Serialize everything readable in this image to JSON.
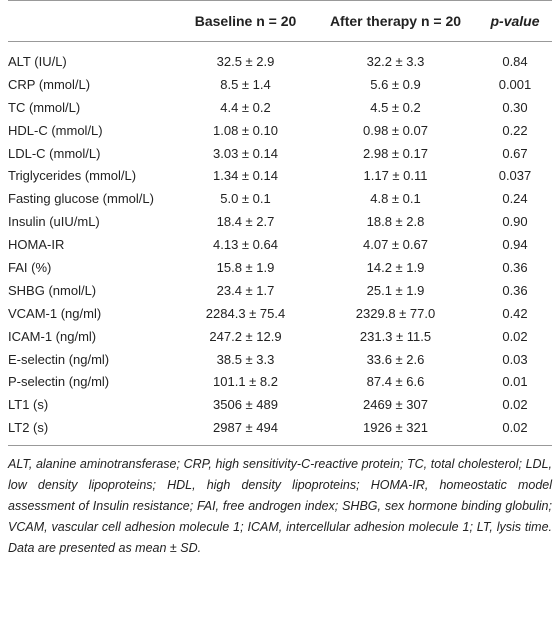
{
  "table": {
    "header": [
      "",
      "Baseline n = 20",
      "After therapy n = 20",
      "p-value"
    ],
    "rows": [
      [
        "ALT (IU/L)",
        "32.5 ± 2.9",
        "32.2 ± 3.3",
        "0.84"
      ],
      [
        "CRP (mmol/L)",
        "8.5 ± 1.4",
        "5.6 ± 0.9",
        "0.001"
      ],
      [
        "TC (mmol/L)",
        "4.4 ± 0.2",
        "4.5 ± 0.2",
        "0.30"
      ],
      [
        "HDL-C (mmol/L)",
        "1.08 ± 0.10",
        "0.98 ± 0.07",
        "0.22"
      ],
      [
        "LDL-C (mmol/L)",
        "3.03 ± 0.14",
        "2.98 ± 0.17",
        "0.67"
      ],
      [
        "Triglycerides (mmol/L)",
        "1.34 ± 0.14",
        "1.17 ± 0.11",
        "0.037"
      ],
      [
        "Fasting glucose (mmol/L)",
        "5.0 ± 0.1",
        "4.8 ± 0.1",
        "0.24"
      ],
      [
        "Insulin (uIU/mL)",
        "18.4 ± 2.7",
        "18.8 ± 2.8",
        "0.90"
      ],
      [
        "HOMA-IR",
        "4.13 ± 0.64",
        "4.07 ± 0.67",
        "0.94"
      ],
      [
        "FAI (%)",
        "15.8 ± 1.9",
        "14.2 ± 1.9",
        "0.36"
      ],
      [
        "SHBG (nmol/L)",
        "23.4 ± 1.7",
        "25.1 ± 1.9",
        "0.36"
      ],
      [
        "VCAM-1 (ng/ml)",
        "2284.3 ± 75.4",
        "2329.8 ± 77.0",
        "0.42"
      ],
      [
        "ICAM-1 (ng/ml)",
        "247.2 ± 12.9",
        "231.3 ± 11.5",
        "0.02"
      ],
      [
        "E-selectin (ng/ml)",
        "38.5 ± 3.3",
        "33.6 ± 2.6",
        "0.03"
      ],
      [
        "P-selectin (ng/ml)",
        "101.1 ± 8.2",
        "87.4 ± 6.6",
        "0.01"
      ],
      [
        "LT1 (s)",
        "3506 ± 489",
        "2469 ± 307",
        "0.02"
      ],
      [
        "LT2 (s)",
        "2987 ± 494",
        "1926 ± 321",
        "0.02"
      ]
    ],
    "footnote": "ALT, alanine aminotransferase; CRP, high sensitivity-C-reactive protein; TC, total cholesterol; LDL, low density lipoproteins; HDL, high density lipoproteins; HOMA-IR, homeostatic model assessment of Insulin resistance; FAI, free androgen index; SHBG, sex hormone binding globulin; VCAM, vascular cell adhesion molecule 1; ICAM, intercellular adhesion molecule 1; LT, lysis time. Data are presented as mean ± SD."
  }
}
